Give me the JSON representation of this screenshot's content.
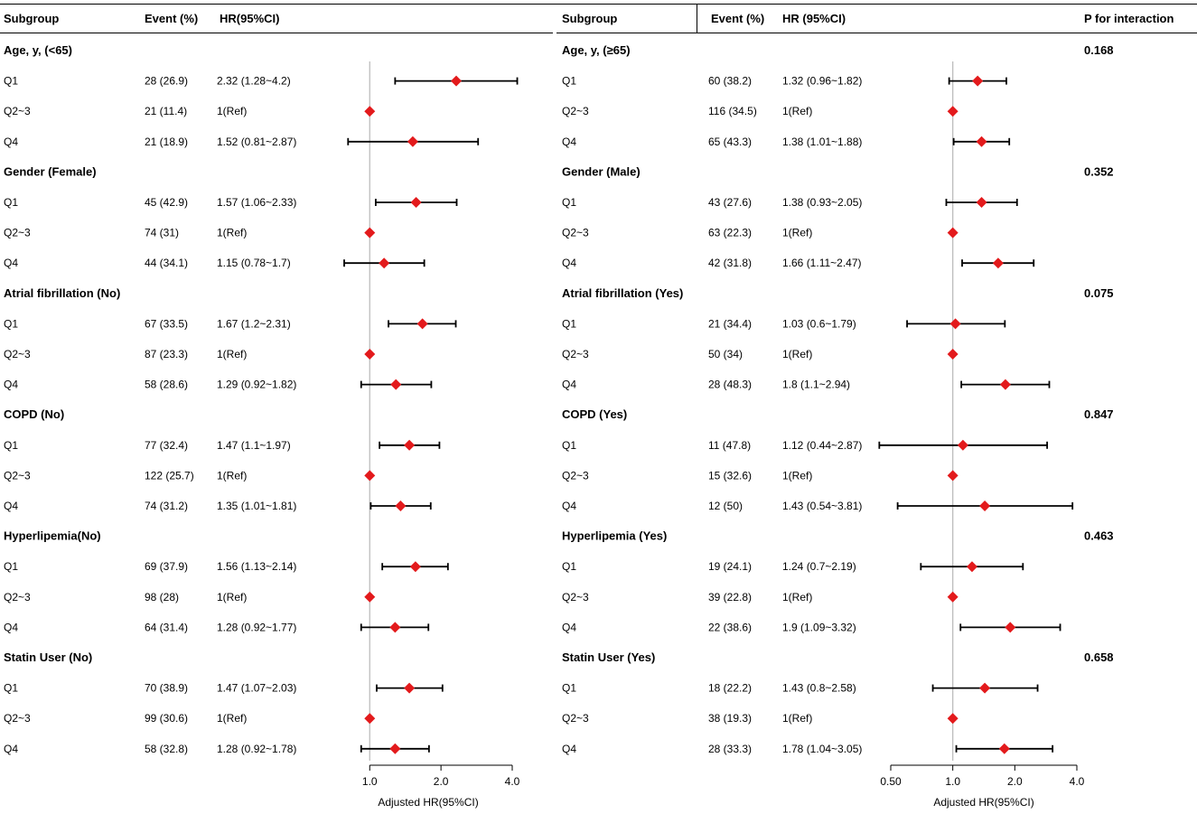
{
  "headers": {
    "left": {
      "subgroup": "Subgroup",
      "event": "Event (%)",
      "hr": "HR(95%CI)"
    },
    "right": {
      "subgroup": "Subgroup",
      "event": "Event (%)",
      "hr": "HR (95%CI)",
      "p": "P for interaction"
    }
  },
  "chart_data": [
    {
      "type": "forest",
      "panel": "left",
      "axis": {
        "ticks": [
          "1.0",
          "2.0",
          "4.0"
        ],
        "tick_values": [
          1.0,
          2.0,
          4.0
        ],
        "xlim": [
          0.78,
          4.0
        ],
        "scale": "log",
        "label": "Adjusted HR(95%CI)",
        "reference": 1.0
      },
      "marker_color": "#e31a1c",
      "groups": [
        {
          "name": "Age, y, (<65)",
          "rows": [
            {
              "label": "Q1",
              "event": "28 (26.9)",
              "hr_text": "2.32 (1.28~4.2)",
              "hr": 2.32,
              "lo": 1.28,
              "hi": 4.2
            },
            {
              "label": "Q2~3",
              "event": "21 (11.4)",
              "hr_text": "1(Ref)",
              "hr": 1.0,
              "lo": null,
              "hi": null
            },
            {
              "label": "Q4",
              "event": "21 (18.9)",
              "hr_text": "1.52 (0.81~2.87)",
              "hr": 1.52,
              "lo": 0.81,
              "hi": 2.87
            }
          ]
        },
        {
          "name": "Gender (Female)",
          "rows": [
            {
              "label": "Q1",
              "event": "45 (42.9)",
              "hr_text": "1.57 (1.06~2.33)",
              "hr": 1.57,
              "lo": 1.06,
              "hi": 2.33
            },
            {
              "label": "Q2~3",
              "event": "74 (31)",
              "hr_text": "1(Ref)",
              "hr": 1.0,
              "lo": null,
              "hi": null
            },
            {
              "label": "Q4",
              "event": "44 (34.1)",
              "hr_text": "1.15 (0.78~1.7)",
              "hr": 1.15,
              "lo": 0.78,
              "hi": 1.7
            }
          ]
        },
        {
          "name": "Atrial fibrillation (No)",
          "rows": [
            {
              "label": "Q1",
              "event": "67 (33.5)",
              "hr_text": "1.67 (1.2~2.31)",
              "hr": 1.67,
              "lo": 1.2,
              "hi": 2.31
            },
            {
              "label": "Q2~3",
              "event": "87 (23.3)",
              "hr_text": "1(Ref)",
              "hr": 1.0,
              "lo": null,
              "hi": null
            },
            {
              "label": "Q4",
              "event": "58 (28.6)",
              "hr_text": "1.29 (0.92~1.82)",
              "hr": 1.29,
              "lo": 0.92,
              "hi": 1.82
            }
          ]
        },
        {
          "name": "COPD (No)",
          "rows": [
            {
              "label": "Q1",
              "event": "77 (32.4)",
              "hr_text": "1.47 (1.1~1.97)",
              "hr": 1.47,
              "lo": 1.1,
              "hi": 1.97
            },
            {
              "label": "Q2~3",
              "event": "122 (25.7)",
              "hr_text": "1(Ref)",
              "hr": 1.0,
              "lo": null,
              "hi": null
            },
            {
              "label": "Q4",
              "event": "74 (31.2)",
              "hr_text": "1.35 (1.01~1.81)",
              "hr": 1.35,
              "lo": 1.01,
              "hi": 1.81
            }
          ]
        },
        {
          "name": "Hyperlipemia(No)",
          "rows": [
            {
              "label": "Q1",
              "event": "69 (37.9)",
              "hr_text": "1.56 (1.13~2.14)",
              "hr": 1.56,
              "lo": 1.13,
              "hi": 2.14
            },
            {
              "label": "Q2~3",
              "event": "98 (28)",
              "hr_text": "1(Ref)",
              "hr": 1.0,
              "lo": null,
              "hi": null
            },
            {
              "label": "Q4",
              "event": "64 (31.4)",
              "hr_text": "1.28 (0.92~1.77)",
              "hr": 1.28,
              "lo": 0.92,
              "hi": 1.77
            }
          ]
        },
        {
          "name": "Statin User (No)",
          "rows": [
            {
              "label": "Q1",
              "event": "70 (38.9)",
              "hr_text": "1.47 (1.07~2.03)",
              "hr": 1.47,
              "lo": 1.07,
              "hi": 2.03
            },
            {
              "label": "Q2~3",
              "event": "99 (30.6)",
              "hr_text": "1(Ref)",
              "hr": 1.0,
              "lo": null,
              "hi": null
            },
            {
              "label": "Q4",
              "event": "58 (32.8)",
              "hr_text": "1.28 (0.92~1.78)",
              "hr": 1.28,
              "lo": 0.92,
              "hi": 1.78
            }
          ]
        }
      ]
    },
    {
      "type": "forest",
      "panel": "right",
      "axis": {
        "ticks": [
          "0.50",
          "1.0",
          "2.0",
          "4.0"
        ],
        "tick_values": [
          0.5,
          1.0,
          2.0,
          4.0
        ],
        "xlim": [
          0.5,
          4.0
        ],
        "scale": "log",
        "label": "Adjusted HR(95%CI)",
        "reference": 1.0
      },
      "marker_color": "#e31a1c",
      "groups": [
        {
          "name": "Age, y, (≥65)",
          "p": "0.168",
          "rows": [
            {
              "label": "Q1",
              "event": "60 (38.2)",
              "hr_text": "1.32 (0.96~1.82)",
              "hr": 1.32,
              "lo": 0.96,
              "hi": 1.82
            },
            {
              "label": "Q2~3",
              "event": "116 (34.5)",
              "hr_text": "1(Ref)",
              "hr": 1.0,
              "lo": null,
              "hi": null
            },
            {
              "label": "Q4",
              "event": "65 (43.3)",
              "hr_text": "1.38 (1.01~1.88)",
              "hr": 1.38,
              "lo": 1.01,
              "hi": 1.88
            }
          ]
        },
        {
          "name": "Gender (Male)",
          "p": "0.352",
          "rows": [
            {
              "label": "Q1",
              "event": "43 (27.6)",
              "hr_text": "1.38 (0.93~2.05)",
              "hr": 1.38,
              "lo": 0.93,
              "hi": 2.05
            },
            {
              "label": "Q2~3",
              "event": "63 (22.3)",
              "hr_text": "1(Ref)",
              "hr": 1.0,
              "lo": null,
              "hi": null
            },
            {
              "label": "Q4",
              "event": "42 (31.8)",
              "hr_text": "1.66 (1.11~2.47)",
              "hr": 1.66,
              "lo": 1.11,
              "hi": 2.47
            }
          ]
        },
        {
          "name": "Atrial fibrillation (Yes)",
          "p": "0.075",
          "rows": [
            {
              "label": "Q1",
              "event": "21 (34.4)",
              "hr_text": "1.03 (0.6~1.79)",
              "hr": 1.03,
              "lo": 0.6,
              "hi": 1.79
            },
            {
              "label": "Q2~3",
              "event": "50 (34)",
              "hr_text": "1(Ref)",
              "hr": 1.0,
              "lo": null,
              "hi": null
            },
            {
              "label": "Q4",
              "event": "28 (48.3)",
              "hr_text": "1.8 (1.1~2.94)",
              "hr": 1.8,
              "lo": 1.1,
              "hi": 2.94
            }
          ]
        },
        {
          "name": "COPD (Yes)",
          "p": "0.847",
          "rows": [
            {
              "label": "Q1",
              "event": "11 (47.8)",
              "hr_text": "1.12 (0.44~2.87)",
              "hr": 1.12,
              "lo": 0.44,
              "hi": 2.87
            },
            {
              "label": "Q2~3",
              "event": "15 (32.6)",
              "hr_text": "1(Ref)",
              "hr": 1.0,
              "lo": null,
              "hi": null
            },
            {
              "label": "Q4",
              "event": "12 (50)",
              "hr_text": "1.43 (0.54~3.81)",
              "hr": 1.43,
              "lo": 0.54,
              "hi": 3.81
            }
          ]
        },
        {
          "name": "Hyperlipemia (Yes)",
          "p": "0.463",
          "rows": [
            {
              "label": "Q1",
              "event": "19 (24.1)",
              "hr_text": "1.24 (0.7~2.19)",
              "hr": 1.24,
              "lo": 0.7,
              "hi": 2.19
            },
            {
              "label": "Q2~3",
              "event": "39 (22.8)",
              "hr_text": "1(Ref)",
              "hr": 1.0,
              "lo": null,
              "hi": null
            },
            {
              "label": "Q4",
              "event": "22 (38.6)",
              "hr_text": "1.9 (1.09~3.32)",
              "hr": 1.9,
              "lo": 1.09,
              "hi": 3.32
            }
          ]
        },
        {
          "name": "Statin User (Yes)",
          "p": "0.658",
          "rows": [
            {
              "label": "Q1",
              "event": "18 (22.2)",
              "hr_text": "1.43 (0.8~2.58)",
              "hr": 1.43,
              "lo": 0.8,
              "hi": 2.58
            },
            {
              "label": "Q2~3",
              "event": "38 (19.3)",
              "hr_text": "1(Ref)",
              "hr": 1.0,
              "lo": null,
              "hi": null
            },
            {
              "label": "Q4",
              "event": "28 (33.3)",
              "hr_text": "1.78 (1.04~3.05)",
              "hr": 1.78,
              "lo": 1.04,
              "hi": 3.05
            }
          ]
        }
      ]
    }
  ]
}
